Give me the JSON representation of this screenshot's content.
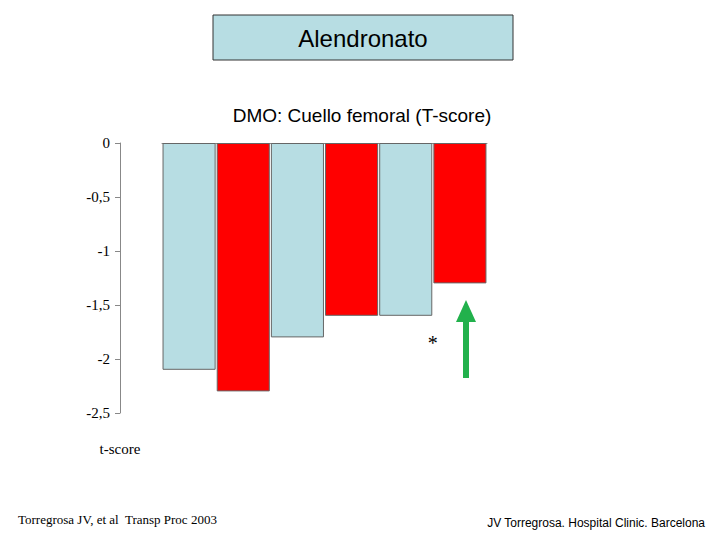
{
  "chart_data": {
    "type": "bar",
    "title": "Alendronato",
    "subtitle": "DMO: Cuello femoral (T-score)",
    "y_label": "t-score",
    "categories": [
      null,
      null,
      null,
      null,
      null,
      null
    ],
    "values": [
      -2.1,
      -2.3,
      -1.8,
      -1.6,
      -1.6,
      -1.3
    ],
    "colors": [
      "#b7dde3",
      "#ff0000",
      "#b7dde3",
      "#ff0000",
      "#b7dde3",
      "#ff0000"
    ],
    "ylim": [
      -2.5,
      0
    ],
    "yticks": [
      -2,
      -1,
      0,
      {
        "value": -2.5,
        "label": "-2,5"
      },
      {
        "value": -1.5,
        "label": "-1,5"
      },
      {
        "value": -0.5,
        "label": "-0,5"
      }
    ],
    "grid": false,
    "annotation": "*",
    "source": "Torregrosa JV, et al  Transp Proc 2003",
    "credit": "JV Torregrosa. Hospital Clinic. Barcelona"
  }
}
